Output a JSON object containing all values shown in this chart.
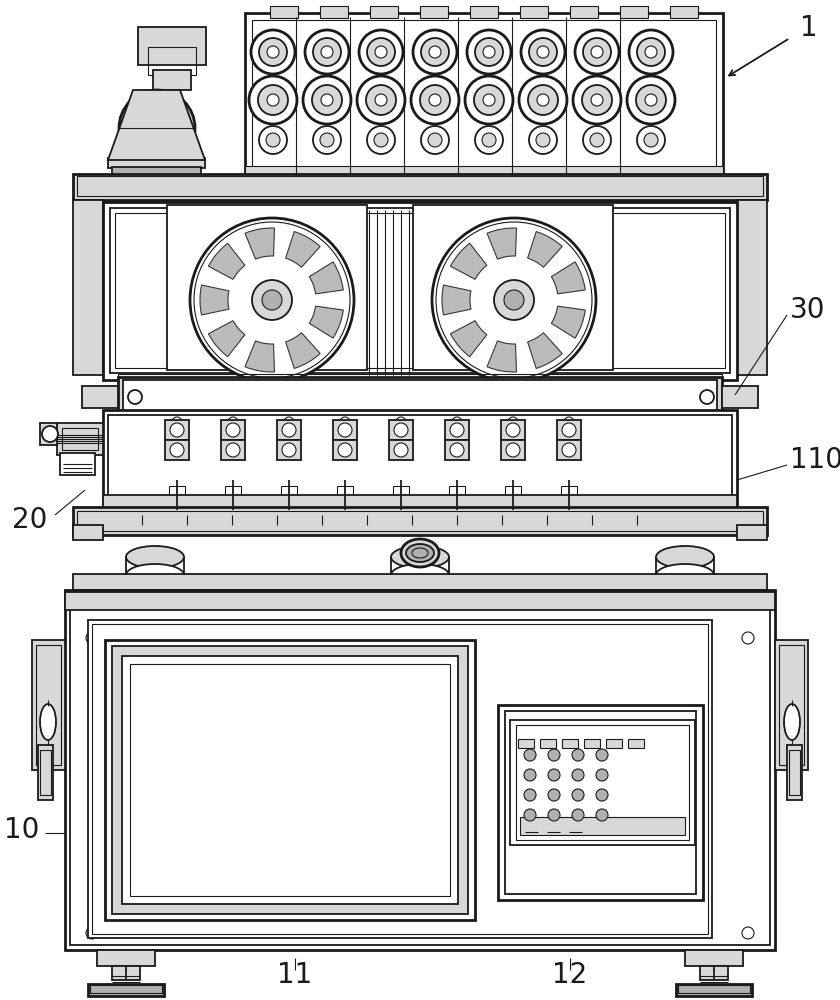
{
  "bg_color": "#ffffff",
  "line_color": "#1a1a1a",
  "lw_thin": 0.8,
  "lw_med": 1.3,
  "lw_thick": 2.0,
  "gray_light": "#d8d8d8",
  "gray_med": "#b0b0b0",
  "gray_dark": "#888888",
  "fig_w": 8.4,
  "fig_h": 10.0
}
